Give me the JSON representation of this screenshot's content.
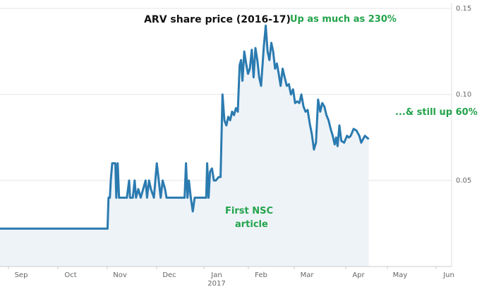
{
  "chart_data": {
    "type": "area",
    "title": "ARV share price (2016-17)",
    "xlabel": "",
    "ylabel": "",
    "x_tick_labels": [
      "Sep",
      "Oct",
      "Nov",
      "Dec",
      "Jan",
      "Feb",
      "Mar",
      "Apr",
      "May",
      "Jun"
    ],
    "x_year_label": "2017",
    "y_tick_labels": [
      "0.15",
      "0.10",
      "0.05"
    ],
    "y_ticks": [
      0.15,
      0.1,
      0.05
    ],
    "ylim": [
      0.0,
      0.15
    ],
    "grid": true,
    "series": [
      {
        "values": [
          [
            0.0,
            0.022
          ],
          [
            2.33,
            0.022
          ],
          [
            2.35,
            0.04
          ],
          [
            2.38,
            0.04
          ],
          [
            2.4,
            0.05
          ],
          [
            2.43,
            0.06
          ],
          [
            2.5,
            0.06
          ],
          [
            2.52,
            0.04
          ],
          [
            2.55,
            0.06
          ],
          [
            2.58,
            0.04
          ],
          [
            2.75,
            0.04
          ],
          [
            2.8,
            0.05
          ],
          [
            2.82,
            0.04
          ],
          [
            2.88,
            0.04
          ],
          [
            2.92,
            0.05
          ],
          [
            2.95,
            0.04
          ],
          [
            3.0,
            0.045
          ],
          [
            3.05,
            0.04
          ],
          [
            3.1,
            0.045
          ],
          [
            3.15,
            0.05
          ],
          [
            3.18,
            0.04
          ],
          [
            3.22,
            0.05
          ],
          [
            3.26,
            0.045
          ],
          [
            3.32,
            0.04
          ],
          [
            3.38,
            0.06
          ],
          [
            3.42,
            0.05
          ],
          [
            3.46,
            0.04
          ],
          [
            3.5,
            0.05
          ],
          [
            3.55,
            0.045
          ],
          [
            3.58,
            0.04
          ],
          [
            3.95,
            0.04
          ],
          [
            3.98,
            0.06
          ],
          [
            4.01,
            0.04
          ],
          [
            4.04,
            0.05
          ],
          [
            4.08,
            0.04
          ],
          [
            4.12,
            0.032
          ],
          [
            4.16,
            0.04
          ],
          [
            4.4,
            0.04
          ],
          [
            4.42,
            0.06
          ],
          [
            4.45,
            0.04
          ],
          [
            4.48,
            0.055
          ],
          [
            4.52,
            0.057
          ],
          [
            4.56,
            0.05
          ],
          [
            4.6,
            0.05
          ],
          [
            4.66,
            0.052
          ],
          [
            4.7,
            0.052
          ],
          [
            4.74,
            0.1
          ],
          [
            4.78,
            0.085
          ],
          [
            4.82,
            0.082
          ],
          [
            4.86,
            0.087
          ],
          [
            4.9,
            0.085
          ],
          [
            4.94,
            0.09
          ],
          [
            4.98,
            0.088
          ],
          [
            5.02,
            0.092
          ],
          [
            5.06,
            0.09
          ],
          [
            5.1,
            0.117
          ],
          [
            5.13,
            0.12
          ],
          [
            5.16,
            0.108
          ],
          [
            5.2,
            0.125
          ],
          [
            5.24,
            0.118
          ],
          [
            5.28,
            0.112
          ],
          [
            5.32,
            0.115
          ],
          [
            5.36,
            0.126
          ],
          [
            5.4,
            0.11
          ],
          [
            5.44,
            0.127
          ],
          [
            5.48,
            0.12
          ],
          [
            5.52,
            0.11
          ],
          [
            5.56,
            0.105
          ],
          [
            5.62,
            0.128
          ],
          [
            5.66,
            0.14
          ],
          [
            5.7,
            0.125
          ],
          [
            5.74,
            0.12
          ],
          [
            5.78,
            0.13
          ],
          [
            5.82,
            0.125
          ],
          [
            5.86,
            0.115
          ],
          [
            5.9,
            0.118
          ],
          [
            5.94,
            0.112
          ],
          [
            5.98,
            0.105
          ],
          [
            6.02,
            0.115
          ],
          [
            6.06,
            0.11
          ],
          [
            6.1,
            0.105
          ],
          [
            6.14,
            0.106
          ],
          [
            6.18,
            0.1
          ],
          [
            6.22,
            0.103
          ],
          [
            6.26,
            0.095
          ],
          [
            6.3,
            0.096
          ],
          [
            6.34,
            0.095
          ],
          [
            6.38,
            0.1
          ],
          [
            6.42,
            0.093
          ],
          [
            6.46,
            0.09
          ],
          [
            6.5,
            0.091
          ],
          [
            6.54,
            0.083
          ],
          [
            6.58,
            0.077
          ],
          [
            6.62,
            0.068
          ],
          [
            6.66,
            0.072
          ],
          [
            6.7,
            0.097
          ],
          [
            6.74,
            0.09
          ],
          [
            6.78,
            0.095
          ],
          [
            6.82,
            0.093
          ],
          [
            6.86,
            0.088
          ],
          [
            6.9,
            0.085
          ],
          [
            6.94,
            0.08
          ],
          [
            6.98,
            0.076
          ],
          [
            7.02,
            0.071
          ],
          [
            7.05,
            0.075
          ],
          [
            7.08,
            0.07
          ],
          [
            7.12,
            0.082
          ],
          [
            7.16,
            0.073
          ],
          [
            7.22,
            0.072
          ],
          [
            7.28,
            0.076
          ],
          [
            7.32,
            0.075
          ],
          [
            7.36,
            0.076
          ],
          [
            7.42,
            0.08
          ],
          [
            7.48,
            0.079
          ],
          [
            7.54,
            0.076
          ],
          [
            7.58,
            0.072
          ],
          [
            7.62,
            0.074
          ],
          [
            7.66,
            0.076
          ],
          [
            7.7,
            0.075
          ],
          [
            7.74,
            0.074
          ]
        ],
        "color": "#2b7bb0"
      }
    ],
    "annotations": [
      {
        "text": "Up as much as 230%",
        "color": "#22a34a"
      },
      {
        "text": "First NSC",
        "color": "#22a34a"
      },
      {
        "text": "article",
        "color": "#22a34a"
      },
      {
        "text": "...& still up 60%",
        "color": "#22a34a"
      }
    ],
    "colors": {
      "line": "#2b7bb0",
      "fill": "#eef3f8",
      "grid": "#e6e6e6",
      "annotation": "#22a34a"
    }
  }
}
